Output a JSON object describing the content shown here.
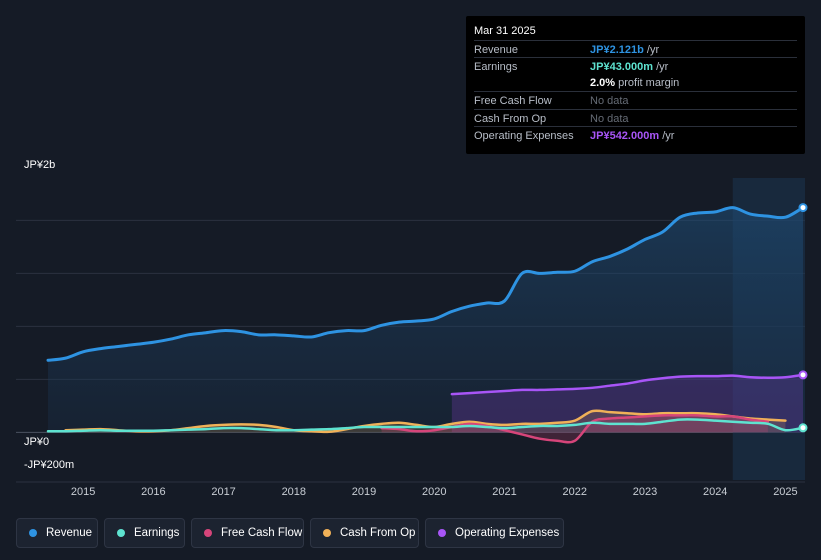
{
  "tooltip": {
    "date": "Mar 31 2025",
    "rows": [
      {
        "label": "Revenue",
        "value": "JP¥2.121b",
        "unit": "/yr",
        "color": "#2e93e2"
      },
      {
        "label": "Earnings",
        "value": "JP¥43.000m",
        "unit": "/yr",
        "color": "#5ee3d0"
      },
      {
        "label": "",
        "value": "2.0%",
        "unit": "profit margin",
        "color": "#ffffff"
      },
      {
        "label": "Free Cash Flow",
        "value": "No data",
        "unit": "",
        "color": "#666c76"
      },
      {
        "label": "Cash From Op",
        "value": "No data",
        "unit": "",
        "color": "#666c76"
      },
      {
        "label": "Operating Expenses",
        "value": "JP¥542.000m",
        "unit": "/yr",
        "color": "#a855f7"
      }
    ]
  },
  "legend": [
    {
      "label": "Revenue",
      "color": "#2e93e2"
    },
    {
      "label": "Earnings",
      "color": "#5ee3d0"
    },
    {
      "label": "Free Cash Flow",
      "color": "#d6457a"
    },
    {
      "label": "Cash From Op",
      "color": "#f0b158"
    },
    {
      "label": "Operating Expenses",
      "color": "#a855f7"
    }
  ],
  "chart_data": {
    "type": "area",
    "title": "",
    "xlabel": "",
    "ylabel": "",
    "y_tick_labels": [
      "JP¥2b",
      "JP¥0",
      "-JP¥200m"
    ],
    "x_ticks": [
      2015,
      2016,
      2017,
      2018,
      2019,
      2020,
      2021,
      2022,
      2023,
      2024,
      2025
    ],
    "xlim": [
      2014.5,
      2025.25
    ],
    "ylim": [
      -450,
      2400
    ],
    "forecast_shade_start": 2024.25,
    "series": [
      {
        "name": "Revenue",
        "color": "#2e93e2",
        "area": true,
        "points": [
          [
            2014.5,
            680
          ],
          [
            2014.75,
            700
          ],
          [
            2015.0,
            760
          ],
          [
            2015.25,
            790
          ],
          [
            2015.5,
            810
          ],
          [
            2015.75,
            830
          ],
          [
            2016.0,
            850
          ],
          [
            2016.25,
            880
          ],
          [
            2016.5,
            920
          ],
          [
            2016.75,
            940
          ],
          [
            2017.0,
            960
          ],
          [
            2017.25,
            950
          ],
          [
            2017.5,
            920
          ],
          [
            2017.75,
            920
          ],
          [
            2018.0,
            910
          ],
          [
            2018.25,
            900
          ],
          [
            2018.5,
            940
          ],
          [
            2018.75,
            960
          ],
          [
            2019.0,
            960
          ],
          [
            2019.25,
            1010
          ],
          [
            2019.5,
            1040
          ],
          [
            2019.75,
            1050
          ],
          [
            2020.0,
            1070
          ],
          [
            2020.25,
            1140
          ],
          [
            2020.5,
            1190
          ],
          [
            2020.75,
            1220
          ],
          [
            2021.0,
            1240
          ],
          [
            2021.25,
            1500
          ],
          [
            2021.5,
            1500
          ],
          [
            2021.75,
            1510
          ],
          [
            2022.0,
            1520
          ],
          [
            2022.25,
            1610
          ],
          [
            2022.5,
            1660
          ],
          [
            2022.75,
            1730
          ],
          [
            2023.0,
            1820
          ],
          [
            2023.25,
            1890
          ],
          [
            2023.5,
            2030
          ],
          [
            2023.75,
            2070
          ],
          [
            2024.0,
            2080
          ],
          [
            2024.25,
            2120
          ],
          [
            2024.5,
            2060
          ],
          [
            2024.75,
            2040
          ],
          [
            2025.0,
            2030
          ],
          [
            2025.25,
            2121
          ]
        ]
      },
      {
        "name": "Operating Expenses",
        "color": "#a855f7",
        "area": true,
        "points": [
          [
            2020.25,
            360
          ],
          [
            2020.5,
            370
          ],
          [
            2020.75,
            380
          ],
          [
            2021.0,
            390
          ],
          [
            2021.25,
            400
          ],
          [
            2021.5,
            400
          ],
          [
            2021.75,
            405
          ],
          [
            2022.0,
            410
          ],
          [
            2022.25,
            420
          ],
          [
            2022.5,
            440
          ],
          [
            2022.75,
            460
          ],
          [
            2023.0,
            490
          ],
          [
            2023.25,
            510
          ],
          [
            2023.5,
            525
          ],
          [
            2023.75,
            530
          ],
          [
            2024.0,
            530
          ],
          [
            2024.25,
            535
          ],
          [
            2024.5,
            520
          ],
          [
            2024.75,
            515
          ],
          [
            2025.0,
            520
          ],
          [
            2025.25,
            542
          ]
        ]
      },
      {
        "name": "Cash From Op",
        "color": "#f0b158",
        "area": true,
        "points": [
          [
            2014.75,
            20
          ],
          [
            2015.0,
            25
          ],
          [
            2015.25,
            30
          ],
          [
            2015.5,
            20
          ],
          [
            2015.75,
            10
          ],
          [
            2016.0,
            10
          ],
          [
            2016.25,
            20
          ],
          [
            2016.5,
            40
          ],
          [
            2016.75,
            60
          ],
          [
            2017.0,
            70
          ],
          [
            2017.25,
            75
          ],
          [
            2017.5,
            70
          ],
          [
            2017.75,
            50
          ],
          [
            2018.0,
            20
          ],
          [
            2018.25,
            10
          ],
          [
            2018.5,
            5
          ],
          [
            2018.75,
            30
          ],
          [
            2019.0,
            60
          ],
          [
            2019.25,
            80
          ],
          [
            2019.5,
            90
          ],
          [
            2019.75,
            70
          ],
          [
            2020.0,
            50
          ],
          [
            2020.25,
            80
          ],
          [
            2020.5,
            100
          ],
          [
            2020.75,
            80
          ],
          [
            2021.0,
            70
          ],
          [
            2021.25,
            80
          ],
          [
            2021.5,
            80
          ],
          [
            2021.75,
            90
          ],
          [
            2022.0,
            110
          ],
          [
            2022.25,
            200
          ],
          [
            2022.5,
            190
          ],
          [
            2022.75,
            180
          ],
          [
            2023.0,
            170
          ],
          [
            2023.25,
            180
          ],
          [
            2023.5,
            180
          ],
          [
            2023.75,
            180
          ],
          [
            2024.0,
            170
          ],
          [
            2024.25,
            150
          ],
          [
            2024.5,
            130
          ],
          [
            2024.75,
            120
          ],
          [
            2025.0,
            110
          ]
        ]
      },
      {
        "name": "Free Cash Flow",
        "color": "#d6457a",
        "area": true,
        "points": [
          [
            2019.25,
            40
          ],
          [
            2019.5,
            30
          ],
          [
            2019.75,
            10
          ],
          [
            2020.0,
            20
          ],
          [
            2020.25,
            50
          ],
          [
            2020.5,
            80
          ],
          [
            2020.75,
            60
          ],
          [
            2021.0,
            20
          ],
          [
            2021.25,
            -20
          ],
          [
            2021.5,
            -60
          ],
          [
            2021.75,
            -80
          ],
          [
            2022.0,
            -80
          ],
          [
            2022.25,
            100
          ],
          [
            2022.5,
            130
          ],
          [
            2022.75,
            140
          ],
          [
            2023.0,
            150
          ],
          [
            2023.25,
            160
          ],
          [
            2023.5,
            160
          ],
          [
            2023.75,
            160
          ],
          [
            2024.0,
            150
          ],
          [
            2024.25,
            150
          ],
          [
            2024.5,
            120
          ],
          [
            2024.75,
            100
          ]
        ]
      },
      {
        "name": "Earnings",
        "color": "#5ee3d0",
        "area": false,
        "points": [
          [
            2014.5,
            10
          ],
          [
            2014.75,
            10
          ],
          [
            2015.0,
            15
          ],
          [
            2015.25,
            20
          ],
          [
            2015.5,
            15
          ],
          [
            2015.75,
            15
          ],
          [
            2016.0,
            15
          ],
          [
            2016.25,
            20
          ],
          [
            2016.5,
            25
          ],
          [
            2016.75,
            30
          ],
          [
            2017.0,
            40
          ],
          [
            2017.25,
            40
          ],
          [
            2017.5,
            30
          ],
          [
            2017.75,
            20
          ],
          [
            2018.0,
            20
          ],
          [
            2018.25,
            25
          ],
          [
            2018.5,
            30
          ],
          [
            2018.75,
            40
          ],
          [
            2019.0,
            50
          ],
          [
            2019.25,
            50
          ],
          [
            2019.5,
            50
          ],
          [
            2019.75,
            50
          ],
          [
            2020.0,
            50
          ],
          [
            2020.25,
            50
          ],
          [
            2020.5,
            60
          ],
          [
            2020.75,
            50
          ],
          [
            2021.0,
            40
          ],
          [
            2021.25,
            50
          ],
          [
            2021.5,
            60
          ],
          [
            2021.75,
            60
          ],
          [
            2022.0,
            70
          ],
          [
            2022.25,
            90
          ],
          [
            2022.5,
            80
          ],
          [
            2022.75,
            80
          ],
          [
            2023.0,
            80
          ],
          [
            2023.25,
            100
          ],
          [
            2023.5,
            120
          ],
          [
            2023.75,
            120
          ],
          [
            2024.0,
            110
          ],
          [
            2024.25,
            100
          ],
          [
            2024.5,
            90
          ],
          [
            2024.75,
            80
          ],
          [
            2025.0,
            20
          ],
          [
            2025.25,
            43
          ]
        ]
      }
    ]
  }
}
